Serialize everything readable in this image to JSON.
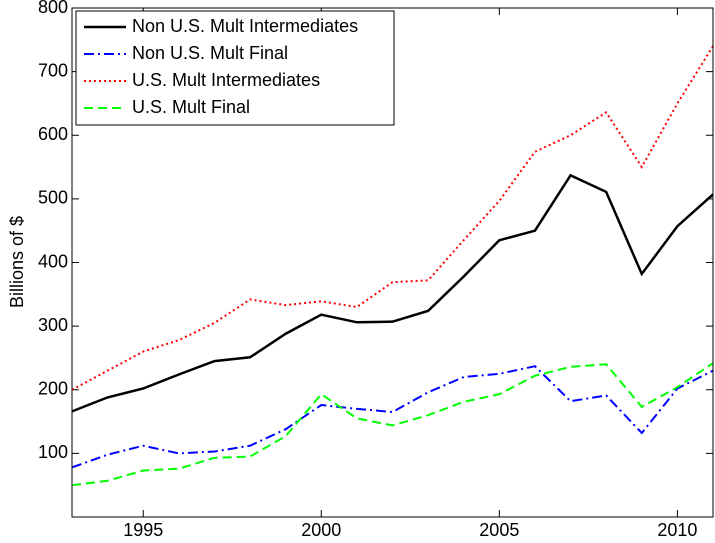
{
  "chart_data": {
    "type": "line",
    "ylabel": "Billions of $",
    "x": [
      1993,
      1994,
      1995,
      1996,
      1997,
      1998,
      1999,
      2000,
      2001,
      2002,
      2003,
      2004,
      2005,
      2006,
      2007,
      2008,
      2009,
      2010,
      2011
    ],
    "series": [
      {
        "name": "Non U.S. Mult Intermediates",
        "color": "#000000",
        "linestyle": "solid",
        "values": [
          166,
          188,
          202,
          224,
          245,
          251,
          288,
          318,
          306,
          307,
          324,
          378,
          435,
          450,
          537,
          511,
          382,
          457,
          507
        ]
      },
      {
        "name": "Non U.S. Mult Final",
        "color": "#0000ff",
        "linestyle": "dashdot",
        "values": [
          78,
          98,
          112,
          100,
          103,
          112,
          138,
          176,
          170,
          165,
          196,
          220,
          225,
          237,
          182,
          191,
          132,
          202,
          230
        ]
      },
      {
        "name": "U.S. Mult Intermediates",
        "color": "#ff0000",
        "linestyle": "dotted",
        "values": [
          200,
          230,
          260,
          278,
          305,
          342,
          333,
          339,
          330,
          369,
          372,
          435,
          497,
          574,
          600,
          636,
          550,
          650,
          740
        ]
      },
      {
        "name": "U.S. Mult Final",
        "color": "#00ff00",
        "linestyle": "dashed",
        "values": [
          50,
          57,
          73,
          76,
          93,
          95,
          127,
          193,
          155,
          144,
          160,
          181,
          193,
          222,
          236,
          240,
          173,
          204,
          242
        ]
      }
    ],
    "xlim": [
      1993,
      2011
    ],
    "xticks": [
      1995,
      2000,
      2005,
      2010
    ],
    "ylim": [
      0,
      800
    ],
    "yticks": [
      100,
      200,
      300,
      400,
      500,
      600,
      700,
      800
    ],
    "legend": "upper left",
    "grid": false
  }
}
